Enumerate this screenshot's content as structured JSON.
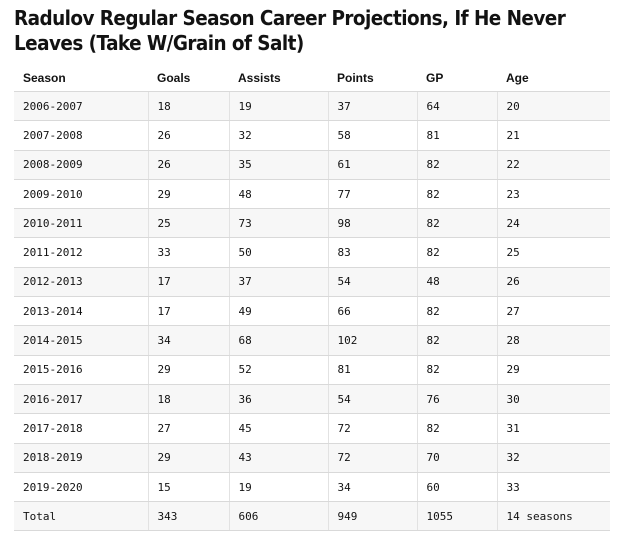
{
  "title": "Radulov Regular Season Career Projections, If He Never Leaves (Take W/Grain of Salt)",
  "table": {
    "headers": [
      "Season",
      "Goals",
      "Assists",
      "Points",
      "GP",
      "Age"
    ],
    "rows": [
      [
        "2006-2007",
        "18",
        "19",
        "37",
        "64",
        "20"
      ],
      [
        "2007-2008",
        "26",
        "32",
        "58",
        "81",
        "21"
      ],
      [
        "2008-2009",
        "26",
        "35",
        "61",
        "82",
        "22"
      ],
      [
        "2009-2010",
        "29",
        "48",
        "77",
        "82",
        "23"
      ],
      [
        "2010-2011",
        "25",
        "73",
        "98",
        "82",
        "24"
      ],
      [
        "2011-2012",
        "33",
        "50",
        "83",
        "82",
        "25"
      ],
      [
        "2012-2013",
        "17",
        "37",
        "54",
        "48",
        "26"
      ],
      [
        "2013-2014",
        "17",
        "49",
        "66",
        "82",
        "27"
      ],
      [
        "2014-2015",
        "34",
        "68",
        "102",
        "82",
        "28"
      ],
      [
        "2015-2016",
        "29",
        "52",
        "81",
        "82",
        "29"
      ],
      [
        "2016-2017",
        "18",
        "36",
        "54",
        "76",
        "30"
      ],
      [
        "2017-2018",
        "27",
        "45",
        "72",
        "82",
        "31"
      ],
      [
        "2018-2019",
        "29",
        "43",
        "72",
        "70",
        "32"
      ],
      [
        "2019-2020",
        "15",
        "19",
        "34",
        "60",
        "33"
      ],
      [
        "Total",
        "343",
        "606",
        "949",
        "1055",
        "14 seasons"
      ]
    ]
  }
}
